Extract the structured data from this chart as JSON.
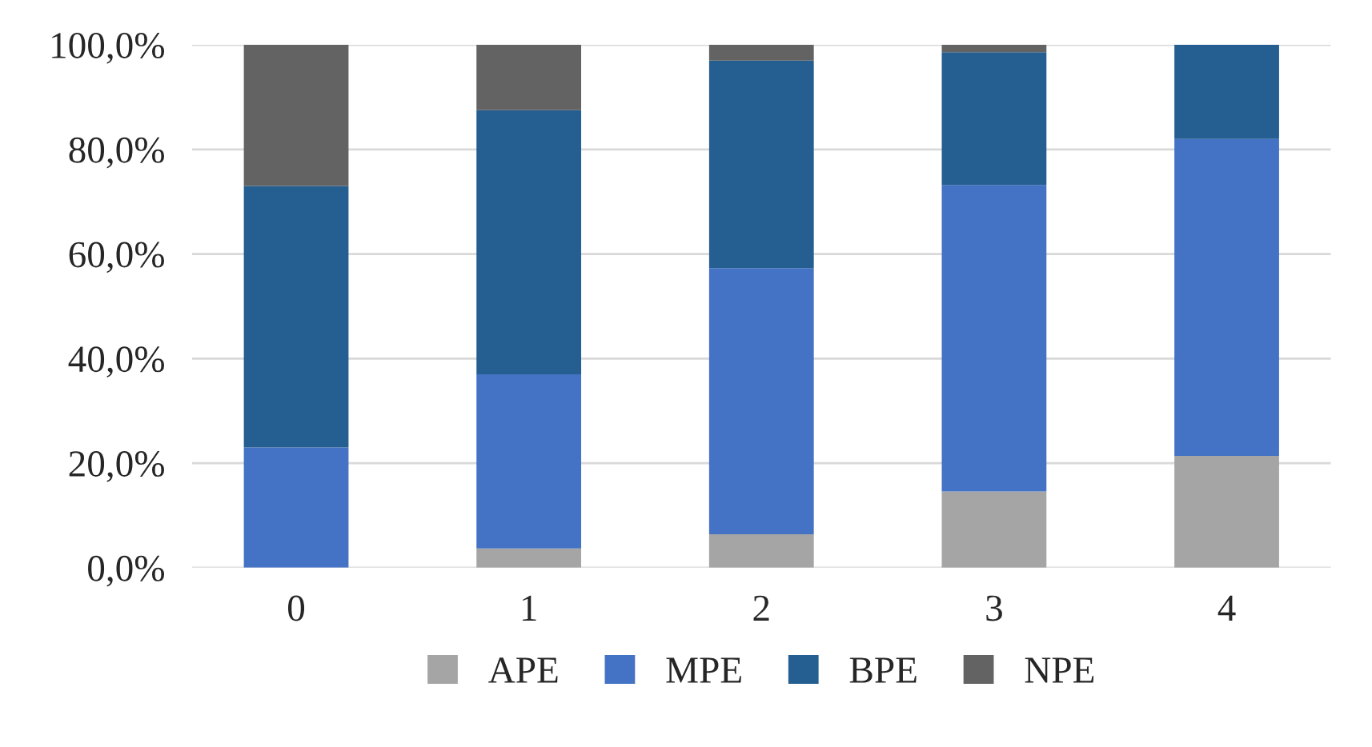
{
  "chart_data": {
    "type": "bar",
    "stacked": true,
    "categories": [
      "0",
      "1",
      "2",
      "3",
      "4"
    ],
    "series": [
      {
        "name": "APE",
        "color": "#a5a5a5",
        "values": [
          0,
          3.7,
          6.4,
          14.6,
          21.4
        ]
      },
      {
        "name": "MPE",
        "color": "#4472c4",
        "values": [
          23,
          33.3,
          50.9,
          58.6,
          60.6
        ]
      },
      {
        "name": "BPE",
        "color": "#255e91",
        "values": [
          50,
          50.5,
          39.7,
          25.4,
          18
        ]
      },
      {
        "name": "NPE",
        "color": "#636363",
        "values": [
          27,
          12.5,
          3,
          1.4,
          null
        ]
      }
    ],
    "ylim": [
      0,
      100
    ],
    "yticks": [
      {
        "value": 0,
        "label": "0,0%"
      },
      {
        "value": 20,
        "label": "20,0%"
      },
      {
        "value": 40,
        "label": "40,0%"
      },
      {
        "value": 60,
        "label": "60,0%"
      },
      {
        "value": 80,
        "label": "80,0%"
      },
      {
        "value": 100,
        "label": "100,0%"
      }
    ],
    "grid": "y",
    "legend": "bottom"
  }
}
